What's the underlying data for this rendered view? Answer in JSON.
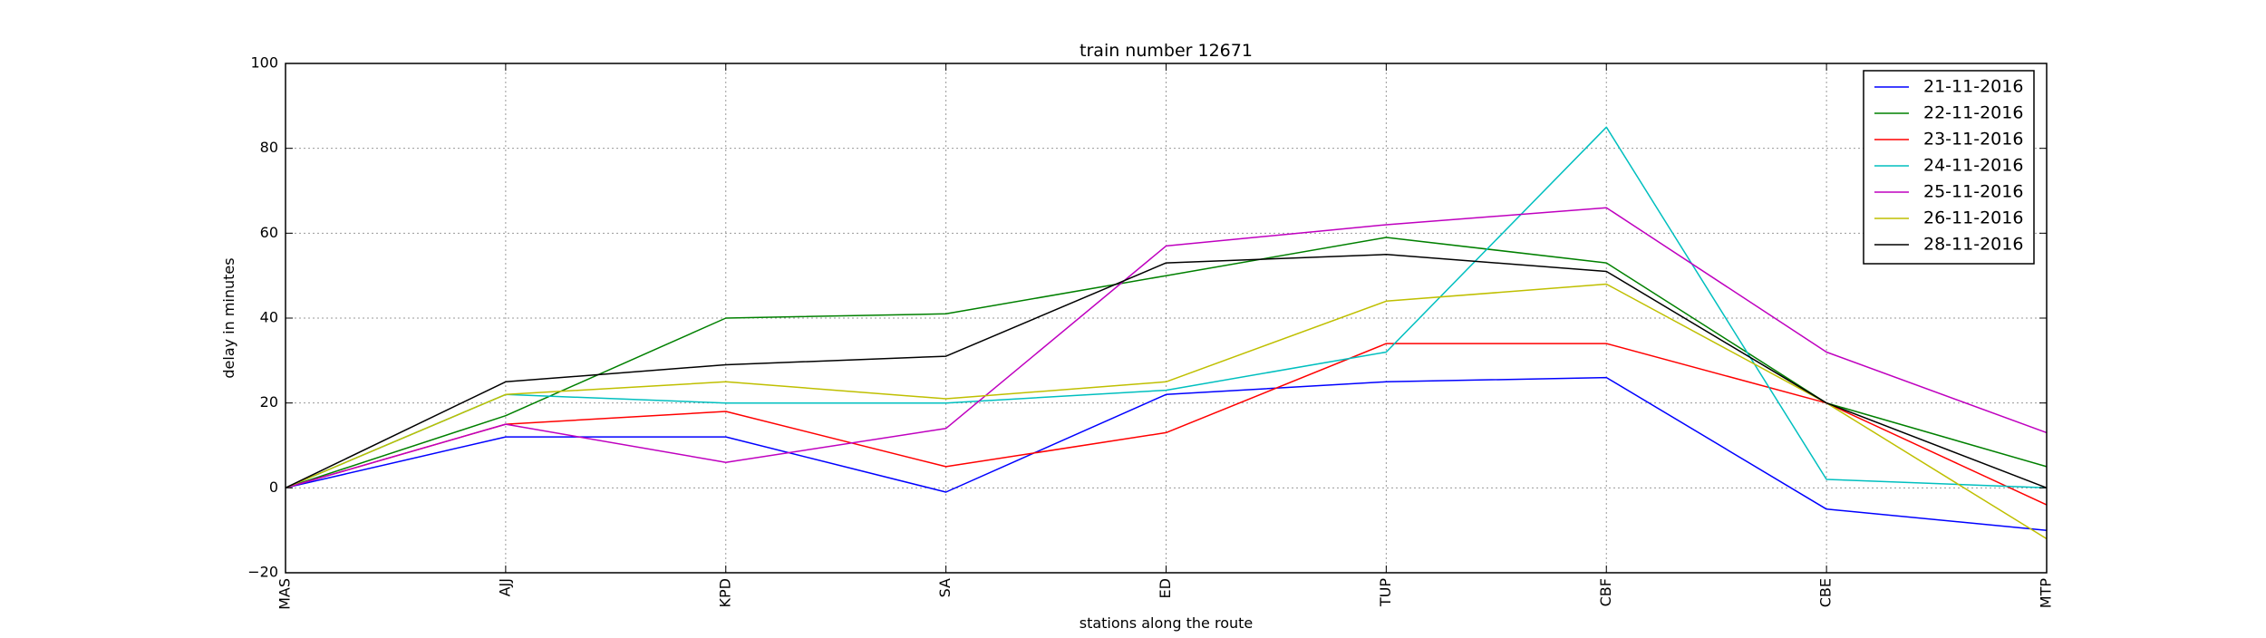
{
  "chart_data": {
    "type": "line",
    "title": "train number 12671",
    "xlabel": "stations along the route",
    "ylabel": "delay in minutes",
    "ylim": [
      -20,
      100
    ],
    "yticks": [
      -20,
      0,
      20,
      40,
      60,
      80,
      100
    ],
    "grid": true,
    "legend_position": "top-right",
    "categories": [
      "MAS",
      "AJJ",
      "KPD",
      "SA",
      "ED",
      "TUP",
      "CBF",
      "CBE",
      "MTP"
    ],
    "series": [
      {
        "name": "21-11-2016",
        "color": "#0000ff",
        "values": [
          0,
          12,
          12,
          -1,
          22,
          25,
          26,
          -5,
          -10
        ]
      },
      {
        "name": "22-11-2016",
        "color": "#008000",
        "values": [
          0,
          17,
          40,
          41,
          50,
          59,
          53,
          20,
          5
        ]
      },
      {
        "name": "23-11-2016",
        "color": "#ff0000",
        "values": [
          0,
          15,
          18,
          5,
          13,
          34,
          34,
          20,
          -4
        ]
      },
      {
        "name": "24-11-2016",
        "color": "#00bfbf",
        "values": [
          0,
          22,
          20,
          20,
          23,
          32,
          85,
          2,
          0
        ]
      },
      {
        "name": "25-11-2016",
        "color": "#bf00bf",
        "values": [
          0,
          15,
          6,
          14,
          57,
          62,
          66,
          32,
          13
        ]
      },
      {
        "name": "26-11-2016",
        "color": "#bfbf00",
        "values": [
          0,
          22,
          25,
          21,
          25,
          44,
          48,
          20,
          -12
        ]
      },
      {
        "name": "28-11-2016",
        "color": "#000000",
        "values": [
          0,
          25,
          29,
          31,
          53,
          55,
          51,
          20,
          0
        ]
      }
    ]
  }
}
